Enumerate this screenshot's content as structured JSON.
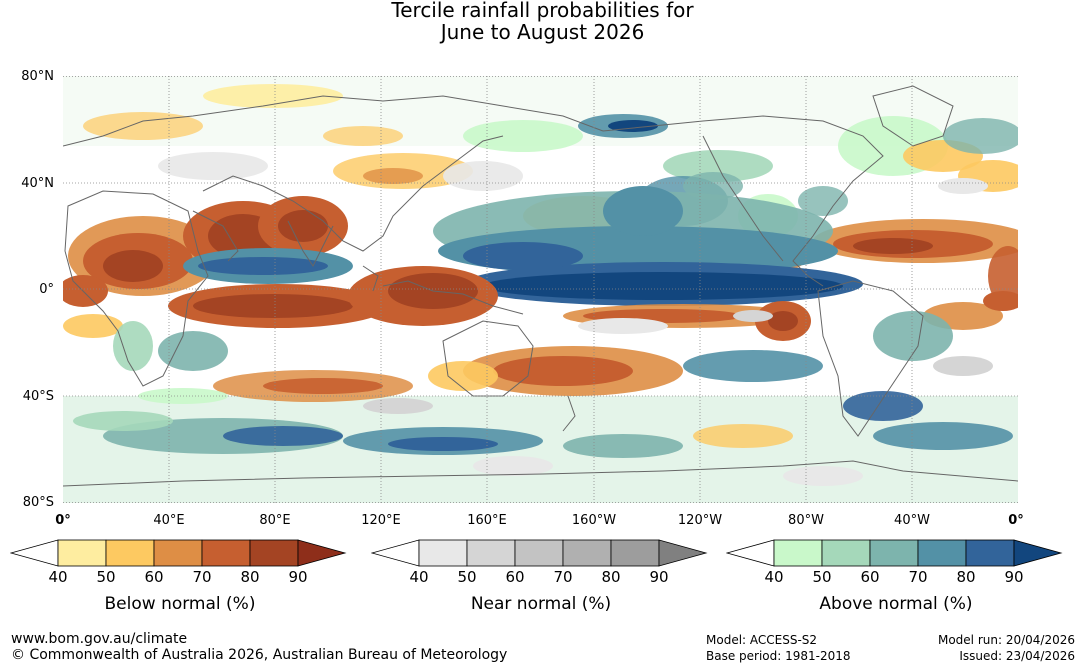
{
  "title": {
    "line1": "Tercile rainfall probabilities for",
    "line2": "June to August 2026"
  },
  "map": {
    "lat_labels": [
      "80°N",
      "40°N",
      "0°",
      "40°S",
      "80°S"
    ],
    "lon_labels": [
      "0°",
      "40°E",
      "80°E",
      "120°E",
      "160°E",
      "160°W",
      "120°W",
      "80°W",
      "40°W",
      "0°"
    ],
    "graticule": "dotted",
    "coastline_color": "#666666"
  },
  "legends": [
    {
      "name": "below",
      "title": "Below normal (%)",
      "ticks": [
        "40",
        "50",
        "60",
        "70",
        "80",
        "90"
      ],
      "colors": [
        "#FFFFFF",
        "#FEEDA0",
        "#FDC961",
        "#DE8E45",
        "#C65F30",
        "#A44423",
        "#8E2E1A"
      ]
    },
    {
      "name": "near",
      "title": "Near normal (%)",
      "ticks": [
        "40",
        "50",
        "60",
        "70",
        "80",
        "90"
      ],
      "colors": [
        "#FFFFFF",
        "#E8E8E8",
        "#D5D5D5",
        "#C3C3C3",
        "#B0B0B0",
        "#9D9D9D",
        "#808080"
      ]
    },
    {
      "name": "above",
      "title": "Above normal (%)",
      "ticks": [
        "40",
        "50",
        "60",
        "70",
        "80",
        "90"
      ],
      "colors": [
        "#FFFFFF",
        "#C9F8CA",
        "#A5D8BA",
        "#7DB4AD",
        "#5391A6",
        "#32649A",
        "#12467E"
      ]
    }
  ],
  "footer": {
    "website": "www.bom.gov.au/climate",
    "copyright": "© Commonwealth of Australia 2026, Australian Bureau of Meteorology",
    "model": "Model: ACCESS-S2",
    "base_period": "Base period: 1981-2018",
    "model_run": "Model run: 20/04/2026",
    "issued": "Issued: 23/04/2026"
  }
}
